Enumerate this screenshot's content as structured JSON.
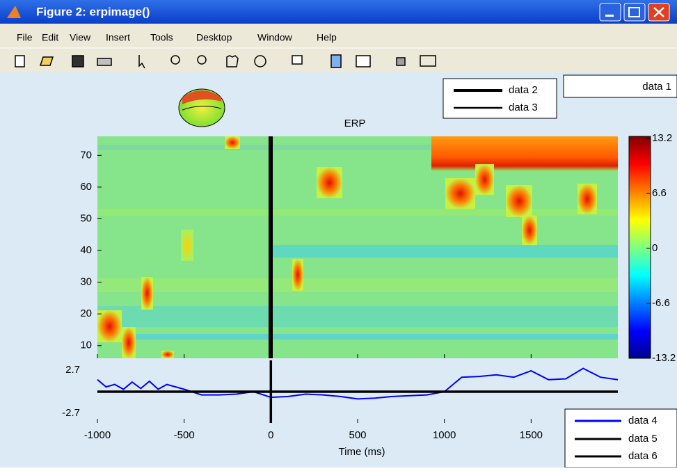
{
  "window": {
    "title": "Figure 2:  erpimage()",
    "menu": [
      "File",
      "Edit",
      "View",
      "Insert",
      "Tools",
      "Desktop",
      "Window",
      "Help"
    ]
  },
  "chart_data": [
    {
      "type": "heatmap",
      "title": "ERP",
      "xlim": [
        -1000,
        2000
      ],
      "ylim": [
        6,
        76
      ],
      "yticks": [
        10,
        20,
        30,
        40,
        50,
        60,
        70
      ],
      "clim": [
        -13.2,
        13.2
      ],
      "cticks": [
        -13.2,
        -6.6,
        0,
        6.6,
        13.2
      ],
      "series": [
        {
          "name": "data 1"
        },
        {
          "name": "data 2",
          "color": "#000000"
        },
        {
          "name": "data 3",
          "color": "#000000"
        }
      ]
    },
    {
      "type": "line",
      "xlabel": "Time (ms)",
      "xlim": [
        -1000,
        2000
      ],
      "xticks": [
        -1000,
        -500,
        0,
        500,
        1000,
        1500
      ],
      "ylim": [
        -3.9,
        3.9
      ],
      "yticks": [
        -2.7,
        2.7
      ],
      "series": [
        {
          "name": "data 4",
          "color": "#0000ff",
          "x": [
            -1000,
            -950,
            -900,
            -850,
            -800,
            -750,
            -700,
            -650,
            -600,
            -500,
            -400,
            -300,
            -200,
            -100,
            0,
            100,
            200,
            300,
            400,
            500,
            600,
            700,
            800,
            900,
            1000,
            1100,
            1200,
            1300,
            1400,
            1500,
            1600,
            1700,
            1800,
            1900,
            2000
          ],
          "values": [
            1.5,
            0.6,
            0.9,
            0.3,
            1.2,
            0.4,
            1.3,
            0.3,
            0.9,
            0.3,
            -0.4,
            -0.4,
            -0.3,
            0,
            -0.7,
            -0.6,
            -0.3,
            -0.4,
            -0.6,
            -0.9,
            -0.8,
            -0.6,
            -0.5,
            -0.4,
            0,
            1.8,
            1.9,
            2.1,
            1.8,
            2.6,
            1.5,
            1.6,
            2.9,
            1.8,
            1.5
          ]
        },
        {
          "name": "data 5",
          "color": "#000000",
          "x": [
            -1000,
            2000
          ],
          "values": [
            0,
            0
          ]
        },
        {
          "name": "data 6",
          "color": "#000000",
          "x": [
            0,
            0
          ],
          "values": [
            -3.9,
            3.9
          ]
        }
      ]
    }
  ]
}
